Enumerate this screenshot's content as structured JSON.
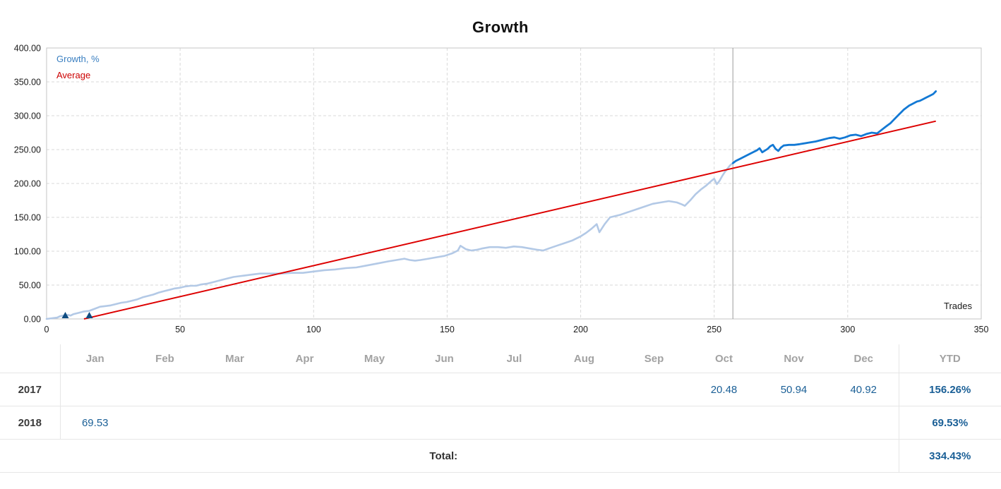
{
  "title": "Growth",
  "chart_data": {
    "type": "line",
    "title": "Growth",
    "xlabel": "Trades",
    "ylabel": "Growth, %",
    "xlim": [
      0,
      350
    ],
    "ylim": [
      0,
      400
    ],
    "x_ticks": [
      0,
      50,
      100,
      150,
      200,
      250,
      300,
      350
    ],
    "x_tick_labels": [
      "0",
      "50",
      "100",
      "150",
      "200",
      "250",
      "300",
      "350"
    ],
    "y_ticks": [
      0,
      50,
      100,
      150,
      200,
      250,
      300,
      350,
      400
    ],
    "y_tick_labels": [
      "0.00",
      "50.00",
      "100.00",
      "150.00",
      "200.00",
      "250.00",
      "300.00",
      "350.00",
      "400.00"
    ],
    "grid": true,
    "legend": [
      "Growth, %",
      "Average"
    ],
    "legend_position": "top-left",
    "colors": {
      "growth_past": "#b3c9e6",
      "growth_recent": "#1379d4",
      "average": "#dd0000",
      "grid": "#d9d9d9",
      "plot_border": "#c6c6c6",
      "current_line": "#9c9c9c",
      "deposit_marker": "#0f4c81",
      "legend_growth_text": "#3a7fc1",
      "legend_average_text": "#cc0000",
      "tick_text": "#1a1a1a"
    },
    "current_line_x": 257,
    "deposit_markers_x": [
      7,
      16
    ],
    "series": [
      {
        "name": "Growth, %",
        "split_x": 257,
        "points": [
          [
            0,
            0
          ],
          [
            2,
            1
          ],
          [
            4,
            2
          ],
          [
            5,
            4
          ],
          [
            6,
            5
          ],
          [
            7,
            4
          ],
          [
            8,
            6
          ],
          [
            9,
            5
          ],
          [
            10,
            7
          ],
          [
            12,
            9
          ],
          [
            14,
            11
          ],
          [
            16,
            12
          ],
          [
            18,
            15
          ],
          [
            20,
            18
          ],
          [
            22,
            19
          ],
          [
            24,
            20
          ],
          [
            26,
            22
          ],
          [
            28,
            24
          ],
          [
            30,
            25
          ],
          [
            32,
            27
          ],
          [
            34,
            29
          ],
          [
            36,
            32
          ],
          [
            38,
            34
          ],
          [
            40,
            36
          ],
          [
            42,
            39
          ],
          [
            44,
            41
          ],
          [
            46,
            43
          ],
          [
            48,
            45
          ],
          [
            50,
            46
          ],
          [
            52,
            48
          ],
          [
            54,
            49
          ],
          [
            56,
            49
          ],
          [
            58,
            51
          ],
          [
            60,
            52
          ],
          [
            62,
            54
          ],
          [
            64,
            56
          ],
          [
            66,
            58
          ],
          [
            68,
            60
          ],
          [
            70,
            62
          ],
          [
            72,
            63
          ],
          [
            74,
            64
          ],
          [
            76,
            65
          ],
          [
            78,
            66
          ],
          [
            80,
            67
          ],
          [
            84,
            67
          ],
          [
            88,
            67
          ],
          [
            92,
            68
          ],
          [
            96,
            68
          ],
          [
            100,
            70
          ],
          [
            104,
            72
          ],
          [
            108,
            73
          ],
          [
            112,
            75
          ],
          [
            116,
            76
          ],
          [
            120,
            79
          ],
          [
            124,
            82
          ],
          [
            128,
            85
          ],
          [
            131,
            87
          ],
          [
            134,
            89
          ],
          [
            136,
            87
          ],
          [
            138,
            86
          ],
          [
            140,
            87
          ],
          [
            143,
            89
          ],
          [
            146,
            91
          ],
          [
            149,
            93
          ],
          [
            152,
            97
          ],
          [
            154,
            101
          ],
          [
            155,
            108
          ],
          [
            157,
            103
          ],
          [
            159,
            101
          ],
          [
            161,
            102
          ],
          [
            163,
            104
          ],
          [
            166,
            106
          ],
          [
            169,
            106
          ],
          [
            172,
            105
          ],
          [
            175,
            107
          ],
          [
            178,
            106
          ],
          [
            181,
            104
          ],
          [
            184,
            102
          ],
          [
            186,
            101
          ],
          [
            188,
            104
          ],
          [
            191,
            108
          ],
          [
            194,
            112
          ],
          [
            197,
            116
          ],
          [
            200,
            122
          ],
          [
            202,
            127
          ],
          [
            204,
            133
          ],
          [
            206,
            140
          ],
          [
            207,
            128
          ],
          [
            209,
            140
          ],
          [
            211,
            150
          ],
          [
            213,
            152
          ],
          [
            215,
            154
          ],
          [
            218,
            158
          ],
          [
            221,
            162
          ],
          [
            224,
            166
          ],
          [
            227,
            170
          ],
          [
            230,
            172
          ],
          [
            233,
            174
          ],
          [
            236,
            172
          ],
          [
            238,
            169
          ],
          [
            239,
            167
          ],
          [
            241,
            175
          ],
          [
            243,
            184
          ],
          [
            245,
            191
          ],
          [
            247,
            197
          ],
          [
            249,
            204
          ],
          [
            250,
            207
          ],
          [
            251,
            199
          ],
          [
            252,
            204
          ],
          [
            253,
            211
          ],
          [
            254,
            217
          ],
          [
            255,
            222
          ],
          [
            256,
            227
          ],
          [
            257,
            230
          ],
          [
            258,
            233
          ],
          [
            260,
            237
          ],
          [
            262,
            241
          ],
          [
            264,
            245
          ],
          [
            266,
            249
          ],
          [
            267,
            252
          ],
          [
            268,
            246
          ],
          [
            270,
            251
          ],
          [
            271,
            255
          ],
          [
            272,
            257
          ],
          [
            273,
            251
          ],
          [
            274,
            248
          ],
          [
            275,
            253
          ],
          [
            276,
            256
          ],
          [
            278,
            257
          ],
          [
            280,
            257
          ],
          [
            282,
            258
          ],
          [
            285,
            260
          ],
          [
            288,
            262
          ],
          [
            291,
            265
          ],
          [
            293,
            267
          ],
          [
            295,
            268
          ],
          [
            297,
            266
          ],
          [
            299,
            268
          ],
          [
            301,
            271
          ],
          [
            303,
            272
          ],
          [
            305,
            270
          ],
          [
            307,
            273
          ],
          [
            309,
            275
          ],
          [
            311,
            274
          ],
          [
            312,
            277
          ],
          [
            313,
            280
          ],
          [
            314,
            283
          ],
          [
            315,
            286
          ],
          [
            316,
            289
          ],
          [
            317,
            293
          ],
          [
            318,
            297
          ],
          [
            319,
            301
          ],
          [
            320,
            305
          ],
          [
            321,
            309
          ],
          [
            322,
            312
          ],
          [
            323,
            315
          ],
          [
            324,
            317
          ],
          [
            325,
            319
          ],
          [
            326,
            321
          ],
          [
            327,
            322
          ],
          [
            328,
            324
          ],
          [
            329,
            326
          ],
          [
            330,
            328
          ],
          [
            331,
            330
          ],
          [
            332,
            332
          ],
          [
            333,
            336
          ]
        ]
      },
      {
        "name": "Average",
        "points": [
          [
            14,
            0
          ],
          [
            333,
            292
          ]
        ]
      }
    ]
  },
  "table": {
    "columns": [
      "Jan",
      "Feb",
      "Mar",
      "Apr",
      "May",
      "Jun",
      "Jul",
      "Aug",
      "Sep",
      "Oct",
      "Nov",
      "Dec",
      "YTD"
    ],
    "rows": [
      {
        "year": "2017",
        "values": [
          "",
          "",
          "",
          "",
          "",
          "",
          "",
          "",
          "",
          "20.48",
          "50.94",
          "40.92"
        ],
        "ytd": "156.26%"
      },
      {
        "year": "2018",
        "values": [
          "69.53",
          "",
          "",
          "",
          "",
          "",
          "",
          "",
          "",
          "",
          "",
          ""
        ],
        "ytd": "69.53%"
      }
    ],
    "total_label": "Total:",
    "total_value": "334.43%"
  }
}
